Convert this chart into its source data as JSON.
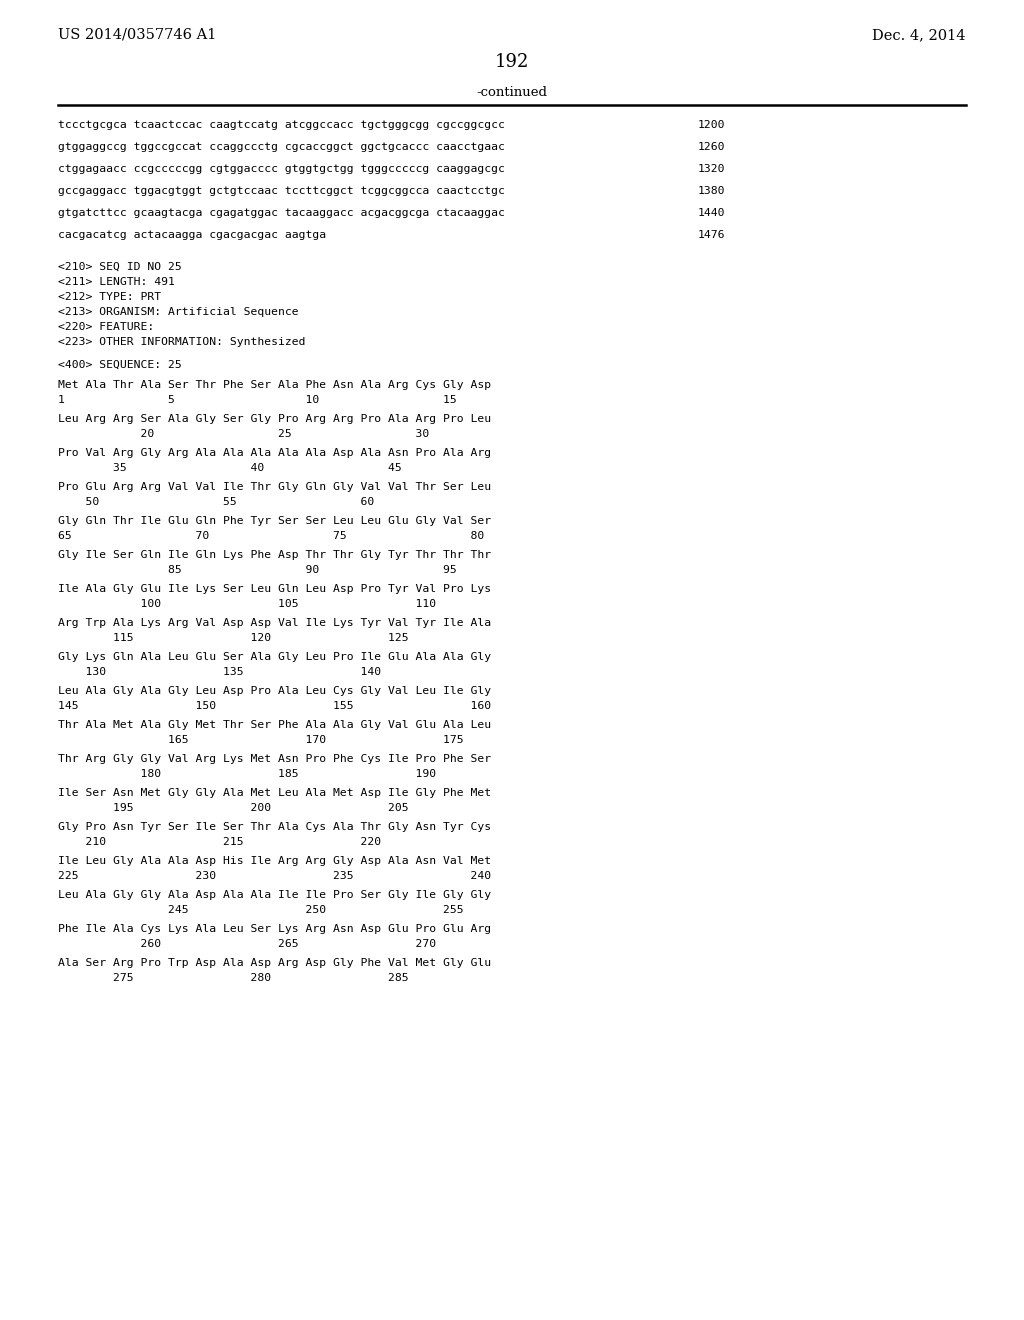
{
  "background_color": "#ffffff",
  "header_left": "US 2014/0357746 A1",
  "header_right": "Dec. 4, 2014",
  "page_number": "192",
  "continued_label": "-continued",
  "monospace_lines": [
    [
      "tccctgcgca tcaactccac caagtccatg atcggccacc tgctgggcgg cgccggcgcc",
      "1200"
    ],
    [
      "gtggaggccg tggccgccat ccaggccctg cgcaccggct ggctgcaccc caacctgaac",
      "1260"
    ],
    [
      "ctggagaacc ccgcccccgg cgtggacccc gtggtgctgg tgggcccccg caaggagcgc",
      "1320"
    ],
    [
      "gccgaggacc tggacgtggt gctgtccaac tccttcggct tcggcggcca caactcctgc",
      "1380"
    ],
    [
      "gtgatcttcc gcaagtacga cgagatggac tacaaggacc acgacggcga ctacaaggac",
      "1440"
    ],
    [
      "cacgacatcg actacaagga cgacgacgac aagtga",
      "1476"
    ]
  ],
  "metadata_lines": [
    "<210> SEQ ID NO 25",
    "<211> LENGTH: 491",
    "<212> TYPE: PRT",
    "<213> ORGANISM: Artificial Sequence",
    "<220> FEATURE:",
    "<223> OTHER INFORMATION: Synthesized"
  ],
  "sequence_header": "<400> SEQUENCE: 25",
  "sequence_blocks": [
    {
      "aa_line": "Met Ala Thr Ala Ser Thr Phe Ser Ala Phe Asn Ala Arg Cys Gly Asp",
      "num_line": "1               5                   10                  15"
    },
    {
      "aa_line": "Leu Arg Arg Ser Ala Gly Ser Gly Pro Arg Arg Pro Ala Arg Pro Leu",
      "num_line": "            20                  25                  30"
    },
    {
      "aa_line": "Pro Val Arg Gly Arg Ala Ala Ala Ala Ala Asp Ala Asn Pro Ala Arg",
      "num_line": "        35                  40                  45"
    },
    {
      "aa_line": "Pro Glu Arg Arg Val Val Ile Thr Gly Gln Gly Val Val Thr Ser Leu",
      "num_line": "    50                  55                  60"
    },
    {
      "aa_line": "Gly Gln Thr Ile Glu Gln Phe Tyr Ser Ser Leu Leu Glu Gly Val Ser",
      "num_line": "65                  70                  75                  80"
    },
    {
      "aa_line": "Gly Ile Ser Gln Ile Gln Lys Phe Asp Thr Thr Gly Tyr Thr Thr Thr",
      "num_line": "                85                  90                  95"
    },
    {
      "aa_line": "Ile Ala Gly Glu Ile Lys Ser Leu Gln Leu Asp Pro Tyr Val Pro Lys",
      "num_line": "            100                 105                 110"
    },
    {
      "aa_line": "Arg Trp Ala Lys Arg Val Asp Asp Val Ile Lys Tyr Val Tyr Ile Ala",
      "num_line": "        115                 120                 125"
    },
    {
      "aa_line": "Gly Lys Gln Ala Leu Glu Ser Ala Gly Leu Pro Ile Glu Ala Ala Gly",
      "num_line": "    130                 135                 140"
    },
    {
      "aa_line": "Leu Ala Gly Ala Gly Leu Asp Pro Ala Leu Cys Gly Val Leu Ile Gly",
      "num_line": "145                 150                 155                 160"
    },
    {
      "aa_line": "Thr Ala Met Ala Gly Met Thr Ser Phe Ala Ala Gly Val Glu Ala Leu",
      "num_line": "                165                 170                 175"
    },
    {
      "aa_line": "Thr Arg Gly Gly Val Arg Lys Met Asn Pro Phe Cys Ile Pro Phe Ser",
      "num_line": "            180                 185                 190"
    },
    {
      "aa_line": "Ile Ser Asn Met Gly Gly Ala Met Leu Ala Met Asp Ile Gly Phe Met",
      "num_line": "        195                 200                 205"
    },
    {
      "aa_line": "Gly Pro Asn Tyr Ser Ile Ser Thr Ala Cys Ala Thr Gly Asn Tyr Cys",
      "num_line": "    210                 215                 220"
    },
    {
      "aa_line": "Ile Leu Gly Ala Ala Asp His Ile Arg Arg Gly Asp Ala Asn Val Met",
      "num_line": "225                 230                 235                 240"
    },
    {
      "aa_line": "Leu Ala Gly Gly Ala Asp Ala Ala Ile Ile Pro Ser Gly Ile Gly Gly",
      "num_line": "                245                 250                 255"
    },
    {
      "aa_line": "Phe Ile Ala Cys Lys Ala Leu Ser Lys Arg Asn Asp Glu Pro Glu Arg",
      "num_line": "            260                 265                 270"
    },
    {
      "aa_line": "Ala Ser Arg Pro Trp Asp Ala Asp Arg Asp Gly Phe Val Met Gly Glu",
      "num_line": "        275                 280                 285"
    }
  ]
}
